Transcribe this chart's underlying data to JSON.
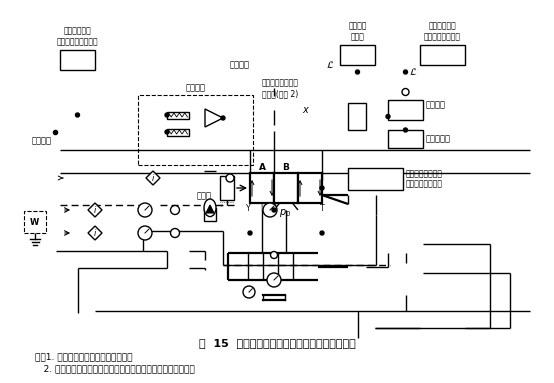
{
  "title": "图  15  四通电液比例方向阀典型的动态试验回路",
  "note1": "注：1. 本试验回路图中未表示截止阀。",
  "note2": "   2. 有必要增加低增益位置反馈回路来校正节流液压缸的漂移。",
  "label_top_left": "可调整振幅和\n频率交流信号发生器",
  "label_freq": "频率响应\n分析仪",
  "label_recorder": "记录示踪器或\n其他动态记录装置",
  "label_ac_signal": "交流信号",
  "label_amp": "阀放大器",
  "label_ac_bias": "交流偏压",
  "label_cylinder": "低摩擦低惯性节流\n差动缸(见注 2)",
  "label_output": "输出信号",
  "label_speed": "速度传感器",
  "label_valve_sensor": "阀心位置传感器和\n信号处理阀放大器",
  "label_dut": "被试阀",
  "label_p0": "$p_0$",
  "label_x": "$x$",
  "label_A": "A",
  "label_B": "B",
  "label_Y": "Y",
  "label_L": "L",
  "label_P": "P",
  "label_T": "T",
  "bg_color": "#ffffff"
}
